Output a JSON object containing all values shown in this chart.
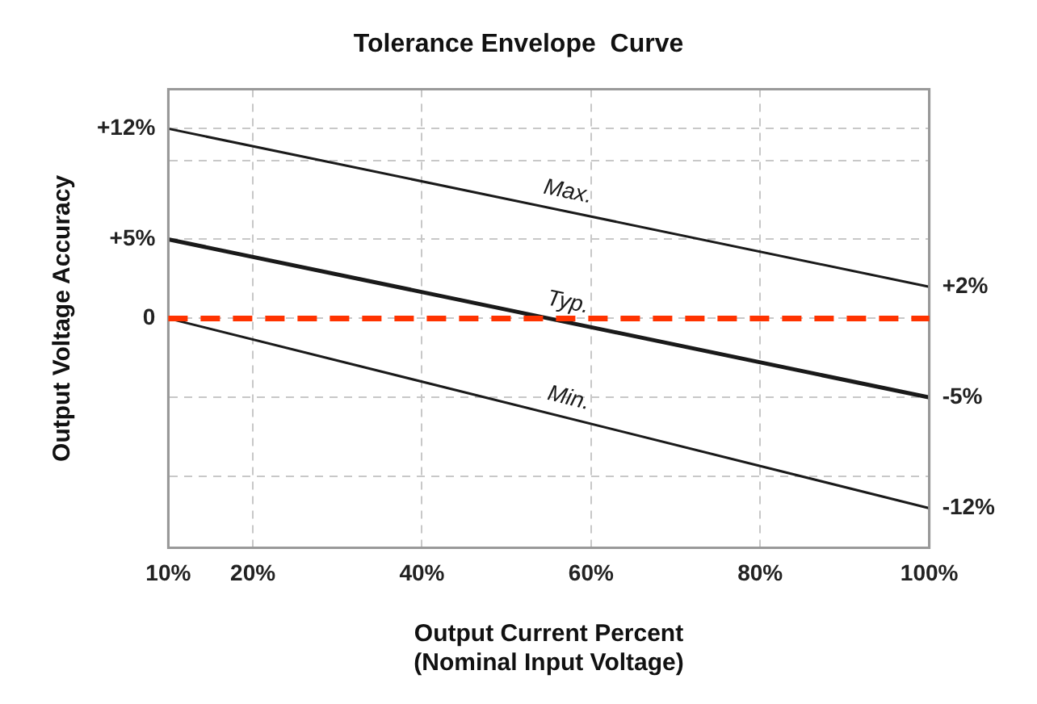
{
  "chart_data": {
    "type": "line",
    "title": "Tolerance Envelope  Curve",
    "xlabel": "Output Current Percent\n(Nominal Input Voltage)",
    "ylabel": "Output Voltage Accuracy",
    "x": [
      10,
      100
    ],
    "series": [
      {
        "name": "Max.",
        "color": "#1a1a1a",
        "values": [
          12,
          2
        ]
      },
      {
        "name": "Typ.",
        "color": "#1a1a1a",
        "values": [
          5,
          -5
        ]
      },
      {
        "name": "Min.",
        "color": "#1a1a1a",
        "values": [
          0,
          -12
        ]
      }
    ],
    "xlim": [
      10,
      100
    ],
    "xticks": [
      {
        "value": 10,
        "label": "10%"
      },
      {
        "value": 20,
        "label": "20%"
      },
      {
        "value": 40,
        "label": "40%"
      },
      {
        "value": 60,
        "label": "60%"
      },
      {
        "value": 80,
        "label": "80%"
      },
      {
        "value": 100,
        "label": "100%"
      }
    ],
    "ylim": [
      -14.5,
      14.5
    ],
    "yticks": [
      {
        "value": -10,
        "label": null
      },
      {
        "value": -5,
        "label": null
      },
      0,
      {
        "value": 5,
        "label": "+5%"
      },
      {
        "value": 10,
        "label": null
      },
      {
        "value": 12,
        "label": "+12%"
      }
    ],
    "y2lim": [
      -14.5,
      14.5
    ],
    "y2ticks": [
      {
        "value": -12,
        "label": "-12%"
      },
      {
        "value": -5,
        "label": "-5%"
      },
      {
        "value": 2,
        "label": "+2%"
      }
    ],
    "ref_lines": [
      {
        "axis": "y",
        "value": 0,
        "color": "#ff3300",
        "line_style": "dashed"
      }
    ],
    "grid": true,
    "legend": false,
    "marker": "none",
    "line_style": "solid"
  }
}
